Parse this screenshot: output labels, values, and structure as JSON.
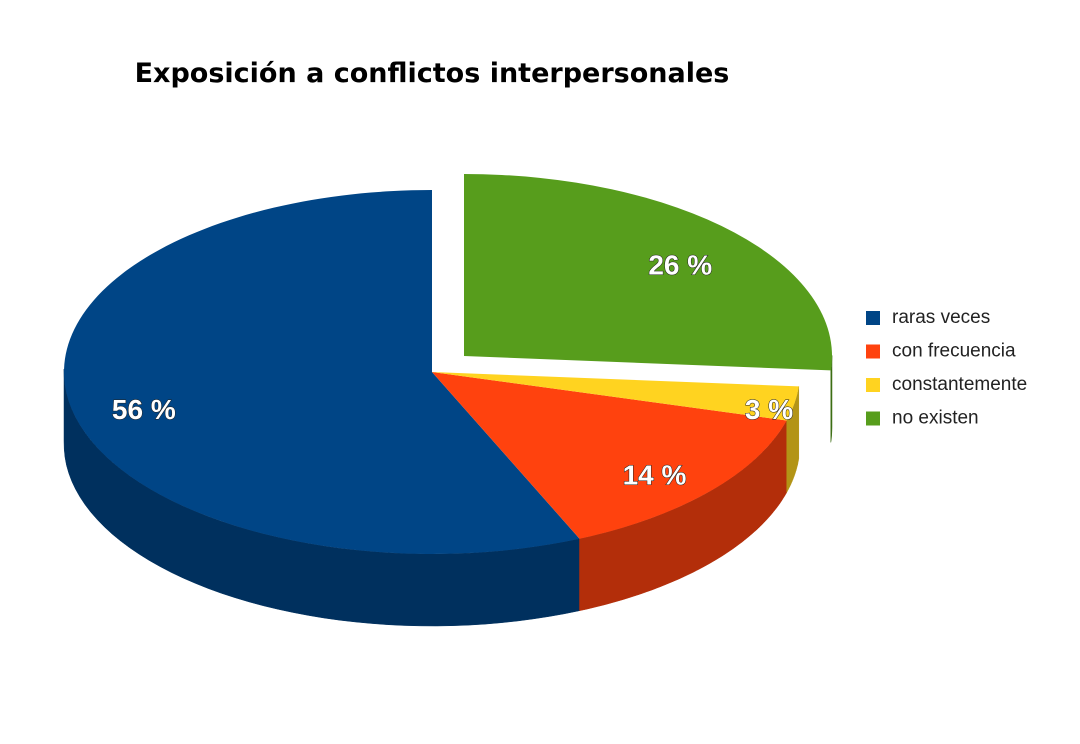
{
  "chart_data": {
    "type": "pie",
    "title": "Exposición a conflictos interpersonales",
    "categories": [
      "raras veces",
      "con frecuencia",
      "constantemente",
      "no existen"
    ],
    "values": [
      56,
      14,
      3,
      26
    ],
    "value_labels": [
      "56 %",
      "14 %",
      "3 %",
      "26 %"
    ],
    "colors": [
      "#004586",
      "#ff420e",
      "#ffd320",
      "#579d1c"
    ],
    "legend": "right"
  }
}
